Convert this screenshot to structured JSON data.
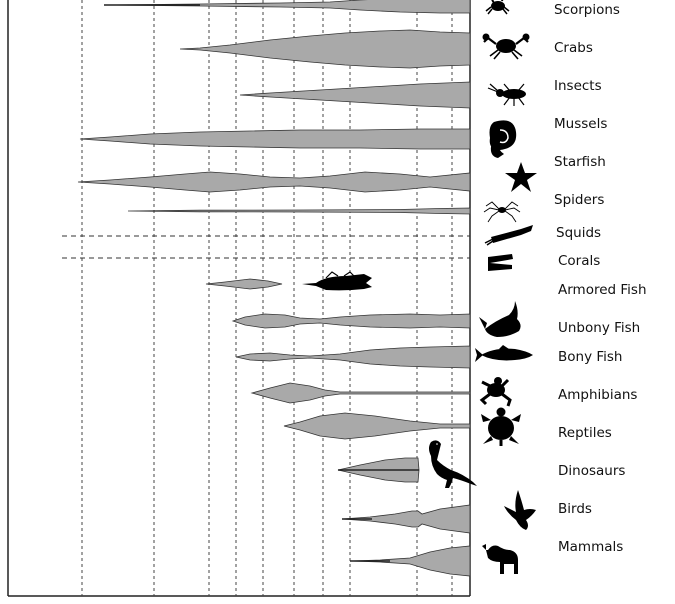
{
  "groups": [
    {
      "id": "scorpions",
      "label": "Scorpions",
      "icon": "scorpion-icon"
    },
    {
      "id": "crabs",
      "label": "Crabs",
      "icon": "crab-icon"
    },
    {
      "id": "insects",
      "label": "Insects",
      "icon": "insect-icon"
    },
    {
      "id": "mussels",
      "label": "Mussels",
      "icon": "mussel-icon"
    },
    {
      "id": "starfish",
      "label": "Starfish",
      "icon": "starfish-icon"
    },
    {
      "id": "spiders",
      "label": "Spiders",
      "icon": "spider-icon"
    },
    {
      "id": "squids",
      "label": "Squids",
      "icon": "squid-icon"
    },
    {
      "id": "corals",
      "label": "Corals",
      "icon": "coral-icon"
    },
    {
      "id": "armored_fish",
      "label": "Armored Fish",
      "icon": "armored-fish-icon"
    },
    {
      "id": "unbony_fish",
      "label": "Unbony Fish",
      "icon": "shark-icon"
    },
    {
      "id": "bony_fish",
      "label": "Bony Fish",
      "icon": "bony-fish-icon"
    },
    {
      "id": "amphibians",
      "label": "Amphibians",
      "icon": "frog-icon"
    },
    {
      "id": "reptiles",
      "label": "Reptiles",
      "icon": "turtle-icon"
    },
    {
      "id": "dinosaurs",
      "label": "Dinosaurs",
      "icon": "dinosaur-icon"
    },
    {
      "id": "birds",
      "label": "Birds",
      "icon": "bird-icon"
    },
    {
      "id": "mammals",
      "label": "Mammals",
      "icon": "mammal-icon"
    }
  ],
  "colors": {
    "spindle": "#a9a9a9",
    "outline": "#333333",
    "grid": "#444444",
    "text": "#111111",
    "silhouette": "#000000"
  }
}
